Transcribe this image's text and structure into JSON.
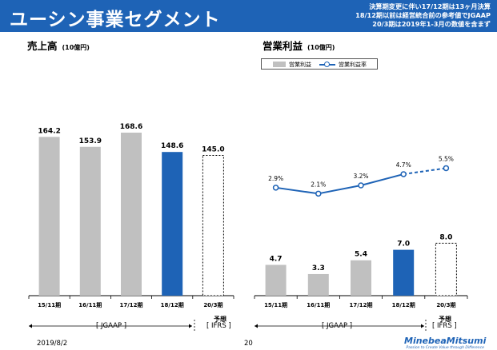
{
  "header": {
    "title": "ユーシン事業セグメント",
    "notes": [
      "決算期変更に伴い17/12期は13ヶ月決算",
      "18/12期以前は経営統合前の参考値でJGAAP",
      "20/3期は2019年1-3月の数値を含まず"
    ]
  },
  "sales": {
    "title": "売上高",
    "unit": "(10億円)"
  },
  "operating": {
    "title": "営業利益",
    "unit": "(10億円)",
    "legend_bar": "営業利益",
    "legend_line": "営業利益率"
  },
  "eras": {
    "jgaap": "[ JGAAP ]",
    "forecast": "予想",
    "ifrs": "[ IFRS ]"
  },
  "footer": {
    "date": "2019/8/2",
    "page": "20",
    "logo": "MinebeaMitsumi",
    "tagline": "Passion to Create Value through Difference"
  },
  "colors": {
    "header": "#1e63b6",
    "actual_bar": "#c0c0c0",
    "latest_bar": "#1e63b6",
    "margin_line": "#1e63b6"
  },
  "chart_data": [
    {
      "type": "bar",
      "title": "売上高",
      "categories": [
        "15/11期",
        "16/11期",
        "17/12期",
        "18/12期",
        "20/3期"
      ],
      "values": [
        164.2,
        153.9,
        168.6,
        148.6,
        145.0
      ],
      "value_labels": [
        "164.2",
        "153.9",
        "168.6",
        "148.6",
        "145.0"
      ],
      "bar_styles": [
        "actual",
        "actual",
        "actual",
        "highlight",
        "forecast"
      ],
      "ylabel": "(10億円)",
      "ylim": [
        0,
        200
      ],
      "grid": false
    },
    {
      "type": "bar",
      "title": "営業利益",
      "categories": [
        "15/11期",
        "16/11期",
        "17/12期",
        "18/12期",
        "20/3期"
      ],
      "series": [
        {
          "name": "営業利益",
          "values": [
            4.7,
            3.3,
            5.4,
            7.0,
            8.0
          ],
          "labels": [
            "4.7",
            "3.3",
            "5.4",
            "7.0",
            "8.0"
          ]
        },
        {
          "name": "営業利益率",
          "type": "line",
          "values": [
            2.9,
            2.1,
            3.2,
            4.7,
            5.5
          ],
          "labels": [
            "2.9%",
            "2.1%",
            "3.2%",
            "4.7%",
            "5.5%"
          ]
        }
      ],
      "bar_styles": [
        "actual",
        "actual",
        "actual",
        "highlight",
        "forecast"
      ],
      "ylabel": "(10億円)",
      "ylim": [
        0,
        30
      ],
      "legend": "top-left",
      "grid": false
    }
  ]
}
